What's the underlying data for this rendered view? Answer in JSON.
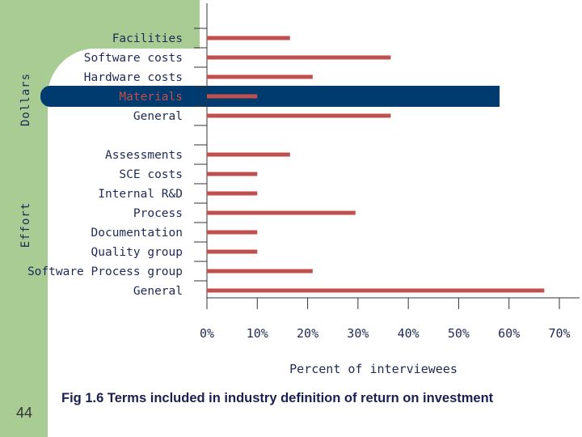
{
  "caption": "Fig 1.6 Terms included in industry definition of return on investment",
  "slide_number": "44",
  "colors": {
    "bar": "#c0504d",
    "highlight": "#003b6f",
    "sidebar": "#a8cc94",
    "text": "#1e2a55"
  },
  "chart_data": {
    "type": "bar",
    "orientation": "horizontal",
    "title": "",
    "xlabel": "Percent of interviewees",
    "ylabel": "",
    "xlim": [
      0,
      70
    ],
    "xticks": [
      "0%",
      "10%",
      "20%",
      "30%",
      "40%",
      "50%",
      "60%",
      "70%"
    ],
    "groups": [
      {
        "name": "Dollars",
        "categories": [
          "Facilities",
          "Software costs",
          "Hardware costs",
          "Materials",
          "General"
        ]
      },
      {
        "name": "Effort",
        "categories": [
          "Assessments",
          "SCE costs",
          "Internal R&D",
          "Process",
          "Documentation",
          "Quality group",
          "Software Process group",
          "General"
        ]
      }
    ],
    "categories": [
      "Facilities",
      "Software costs",
      "Hardware costs",
      "Materials",
      "General",
      "Assessments",
      "SCE costs",
      "Internal R&D",
      "Process",
      "Documentation",
      "Quality group",
      "Software Process group",
      "General"
    ],
    "values": [
      16.5,
      36.5,
      21,
      10,
      36.5,
      16.5,
      10,
      10,
      29.5,
      10,
      10,
      21,
      67
    ],
    "highlighted_category": "Materials"
  }
}
